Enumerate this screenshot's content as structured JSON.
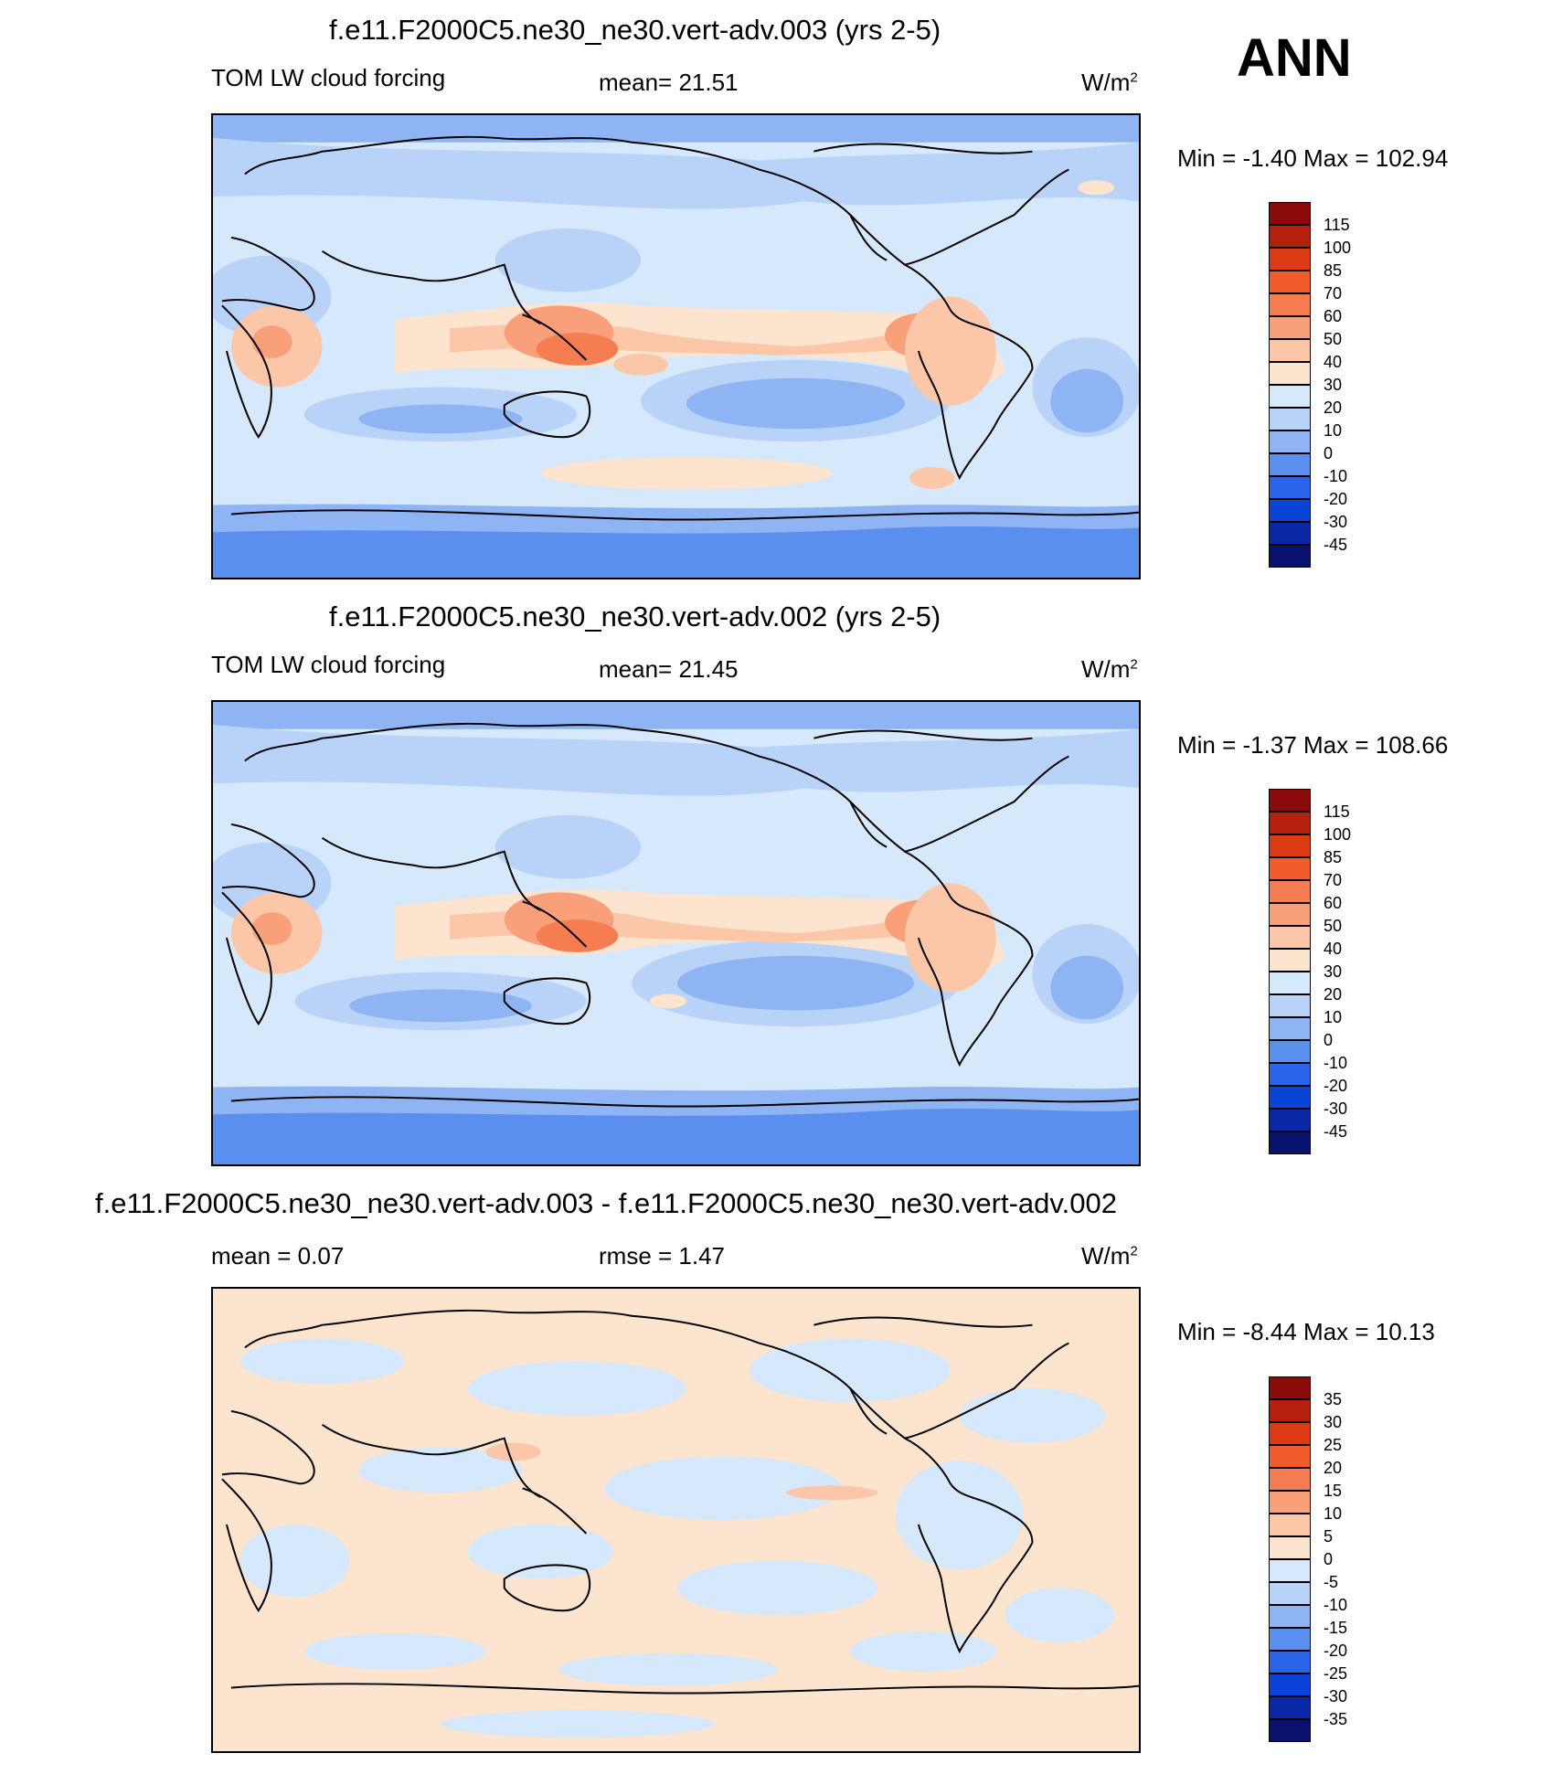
{
  "season": "ANN",
  "units": "W/m",
  "units_sup": "2",
  "panels": [
    {
      "title": "f.e11.F2000C5.ne30_ne30.vert-adv.003 (yrs 2-5)",
      "left": "TOM LW cloud forcing",
      "center": "mean=  21.51",
      "minmax": "Min =  -1.40 Max = 102.94",
      "type": "field"
    },
    {
      "title": "f.e11.F2000C5.ne30_ne30.vert-adv.002 (yrs 2-5)",
      "left": "TOM LW cloud forcing",
      "center": "mean=  21.45",
      "minmax": "Min =  -1.37 Max = 108.66",
      "type": "field"
    },
    {
      "title": "f.e11.F2000C5.ne30_ne30.vert-adv.003 - f.e11.F2000C5.ne30_ne30.vert-adv.002",
      "left": "mean =   0.07",
      "center": "rmse =   1.47",
      "minmax": "Min =  -8.44 Max =  10.13",
      "type": "diff"
    }
  ],
  "colorbars": {
    "field": {
      "levels": [
        "115",
        "100",
        "85",
        "70",
        "60",
        "50",
        "40",
        "30",
        "20",
        "10",
        "0",
        "-10",
        "-20",
        "-30",
        "-45"
      ],
      "colors": [
        "#8b0a0a",
        "#b5200e",
        "#dc3a12",
        "#f25b2b",
        "#f67d52",
        "#f9a07b",
        "#fcc7a8",
        "#fde4cf",
        "#d6e8fb",
        "#b8d2f8",
        "#8fb4f4",
        "#5a8ff0",
        "#2a64ea",
        "#0a44d6",
        "#0a28a6",
        "#08126e"
      ]
    },
    "diff": {
      "levels": [
        "35",
        "30",
        "25",
        "20",
        "15",
        "10",
        "5",
        "0",
        "-5",
        "-10",
        "-15",
        "-20",
        "-25",
        "-30",
        "-35"
      ],
      "colors": [
        "#8b0a0a",
        "#b5200e",
        "#dc3a12",
        "#f25b2b",
        "#f67d52",
        "#f9a07b",
        "#fcc7a8",
        "#fde4cf",
        "#d6e8fb",
        "#b8d2f8",
        "#8fb4f4",
        "#5a8ff0",
        "#2a64ea",
        "#0a44d6",
        "#0a28a6",
        "#08126e"
      ]
    }
  }
}
